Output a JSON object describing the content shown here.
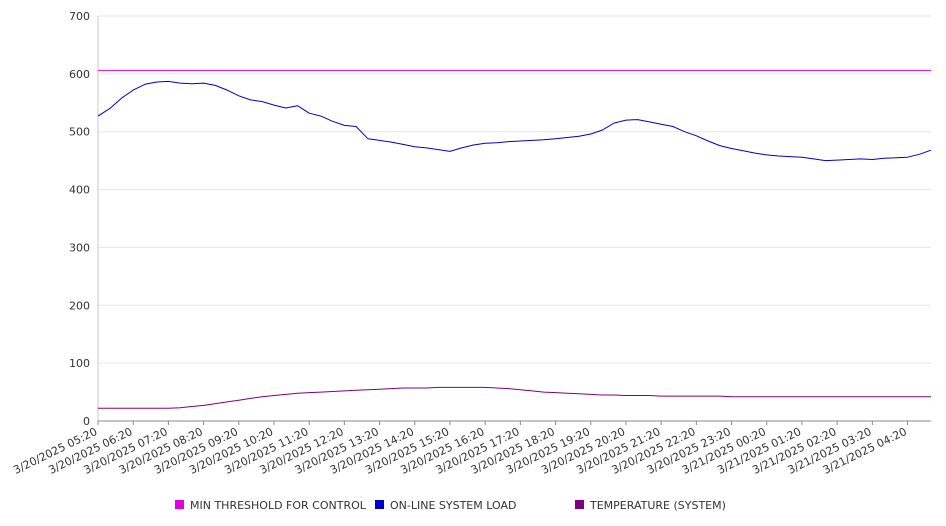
{
  "chart_data": {
    "type": "line",
    "title": "",
    "xlabel": "",
    "ylabel": "",
    "ylim": [
      0,
      700
    ],
    "yticks": [
      0,
      100,
      200,
      300,
      400,
      500,
      600,
      700
    ],
    "grid": "horizontal",
    "legend_position": "bottom",
    "x_tick_labels": [
      "3/20/2025 05:20",
      "3/20/2025 06:20",
      "3/20/2025 07:20",
      "3/20/2025 08:20",
      "3/20/2025 09:20",
      "3/20/2025 10:20",
      "3/20/2025 11:20",
      "3/20/2025 12:20",
      "3/20/2025 13:20",
      "3/20/2025 14:20",
      "3/20/2025 15:20",
      "3/20/2025 16:20",
      "3/20/2025 17:20",
      "3/20/2025 18:20",
      "3/20/2025 19:20",
      "3/20/2025 20:20",
      "3/20/2025 21:20",
      "3/20/2025 22:20",
      "3/20/2025 23:20",
      "3/21/2025 00:20",
      "3/21/2025 01:20",
      "3/21/2025 02:20",
      "3/21/2025 03:20",
      "3/21/2025 04:20"
    ],
    "x": [
      "3/20/2025 05:20",
      "3/20/2025 05:40",
      "3/20/2025 06:00",
      "3/20/2025 06:20",
      "3/20/2025 06:40",
      "3/20/2025 07:00",
      "3/20/2025 07:20",
      "3/20/2025 07:40",
      "3/20/2025 08:00",
      "3/20/2025 08:20",
      "3/20/2025 08:40",
      "3/20/2025 09:00",
      "3/20/2025 09:20",
      "3/20/2025 09:40",
      "3/20/2025 10:00",
      "3/20/2025 10:20",
      "3/20/2025 10:40",
      "3/20/2025 11:00",
      "3/20/2025 11:20",
      "3/20/2025 11:40",
      "3/20/2025 12:00",
      "3/20/2025 12:20",
      "3/20/2025 12:40",
      "3/20/2025 13:00",
      "3/20/2025 13:20",
      "3/20/2025 13:40",
      "3/20/2025 14:00",
      "3/20/2025 14:20",
      "3/20/2025 14:40",
      "3/20/2025 15:00",
      "3/20/2025 15:20",
      "3/20/2025 15:40",
      "3/20/2025 16:00",
      "3/20/2025 16:20",
      "3/20/2025 16:40",
      "3/20/2025 17:00",
      "3/20/2025 17:20",
      "3/20/2025 17:40",
      "3/20/2025 18:00",
      "3/20/2025 18:20",
      "3/20/2025 18:40",
      "3/20/2025 19:00",
      "3/20/2025 19:20",
      "3/20/2025 19:40",
      "3/20/2025 20:00",
      "3/20/2025 20:20",
      "3/20/2025 20:40",
      "3/20/2025 21:00",
      "3/20/2025 21:20",
      "3/20/2025 21:40",
      "3/20/2025 22:00",
      "3/20/2025 22:20",
      "3/20/2025 22:40",
      "3/20/2025 23:00",
      "3/20/2025 23:20",
      "3/20/2025 23:40",
      "3/21/2025 00:00",
      "3/21/2025 00:20",
      "3/21/2025 00:40",
      "3/21/2025 01:00",
      "3/21/2025 01:20",
      "3/21/2025 01:40",
      "3/21/2025 02:00",
      "3/21/2025 02:20",
      "3/21/2025 02:40",
      "3/21/2025 03:00",
      "3/21/2025 03:20",
      "3/21/2025 03:40",
      "3/21/2025 04:00",
      "3/21/2025 04:20",
      "3/21/2025 04:40",
      "3/21/2025 05:00"
    ],
    "series": [
      {
        "name": "MIN THRESHOLD FOR CONTROL",
        "color": "#e000e0",
        "values": [
          606,
          606,
          606,
          606,
          606,
          606,
          606,
          606,
          606,
          606,
          606,
          606,
          606,
          606,
          606,
          606,
          606,
          606,
          606,
          606,
          606,
          606,
          606,
          606,
          606,
          606,
          606,
          606,
          606,
          606,
          606,
          606,
          606,
          606,
          606,
          606,
          606,
          606,
          606,
          606,
          606,
          606,
          606,
          606,
          606,
          606,
          606,
          606,
          606,
          606,
          606,
          606,
          606,
          606,
          606,
          606,
          606,
          606,
          606,
          606,
          606,
          606,
          606,
          606,
          606,
          606,
          606,
          606,
          606,
          606,
          606,
          606
        ]
      },
      {
        "name": "ON-LINE SYSTEM LOAD",
        "color": "#0000cc",
        "values": [
          527,
          540,
          558,
          572,
          582,
          586,
          587,
          584,
          583,
          584,
          580,
          572,
          562,
          555,
          552,
          546,
          541,
          545,
          532,
          527,
          518,
          511,
          509,
          488,
          485,
          482,
          478,
          474,
          472,
          469,
          466,
          472,
          477,
          480,
          481,
          483,
          484,
          485,
          486,
          488,
          490,
          492,
          496,
          503,
          515,
          520,
          521,
          517,
          513,
          509,
          500,
          493,
          484,
          476,
          471,
          467,
          463,
          460,
          458,
          457,
          456,
          453,
          450,
          451,
          452,
          453,
          452,
          454,
          455,
          456,
          461,
          468
        ]
      },
      {
        "name": "TEMPERATURE (SYSTEM)",
        "color": "#800080",
        "values": [
          22,
          22,
          22,
          22,
          22,
          22,
          22,
          23,
          25,
          27,
          30,
          33,
          36,
          39,
          42,
          44,
          46,
          48,
          49,
          50,
          51,
          52,
          53,
          54,
          55,
          56,
          57,
          57,
          57,
          58,
          58,
          58,
          58,
          58,
          57,
          56,
          54,
          52,
          50,
          49,
          48,
          47,
          46,
          45,
          45,
          44,
          44,
          44,
          43,
          43,
          43,
          43,
          43,
          43,
          42,
          42,
          42,
          42,
          42,
          42,
          42,
          42,
          42,
          42,
          42,
          42,
          42,
          42,
          42,
          42,
          42,
          42
        ]
      }
    ]
  }
}
